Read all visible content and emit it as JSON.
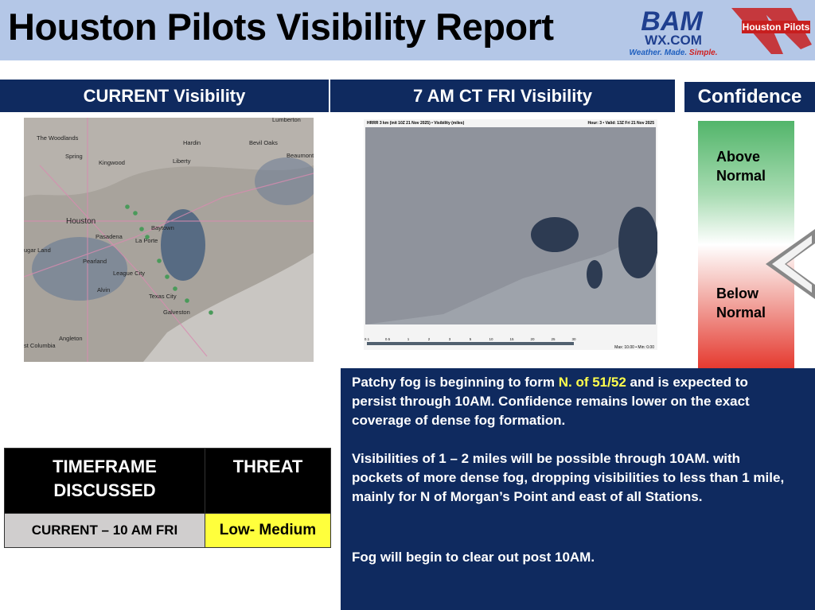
{
  "header": {
    "title": "Houston Pilots Visibility Report",
    "logo_bam": {
      "top": "BAM",
      "bottom": "WX.COM",
      "tagline_parts": [
        "Weather. ",
        "Made. ",
        "Simple."
      ]
    },
    "logo_pilots": "Houston Pilots"
  },
  "panels": {
    "current": {
      "title": "CURRENT Visibility",
      "map_labels": [
        "The Woodlands",
        "Spring",
        "Kingwood",
        "Hardin",
        "Bevil Oaks",
        "Beaumont",
        "Lumberton",
        "Liberty",
        "Houston",
        "Baytown",
        "Pasadena",
        "La Porte",
        "ugar Land",
        "Pearland",
        "League City",
        "Alvin",
        "Texas City",
        "Galveston",
        "Angleton",
        "st Columbia"
      ]
    },
    "forecast": {
      "title": "7 AM CT FRI Visibility",
      "map_header_left": "HRRR 3 km (init 10Z 21 Nov 2025) • Visibility (miles)",
      "map_header_right": "Hour: 3 • Valid: 13Z Fri 21 Nov 2025",
      "legend_ticks": [
        "0.1",
        "0.5",
        "1",
        "2",
        "3",
        "5",
        "10",
        "15",
        "20",
        "25",
        "30"
      ],
      "legend_max": "Max: 10.00 • Min: 0.00"
    }
  },
  "confidence": {
    "title": "Confidence",
    "above": "Above Normal",
    "below": "Below Normal"
  },
  "table": {
    "headers": [
      "TIMEFRAME DISCUSSED",
      "THREAT"
    ],
    "rows": [
      [
        "CURRENT – 10 AM FRI",
        "Low- Medium"
      ]
    ]
  },
  "notes": [
    [
      "Patchy fog is beginning to form ",
      "N. of 51/52",
      " and is expected to persist through 10AM. Confidence remains lower on the exact coverage of dense fog formation."
    ],
    [
      "Visibilities of 1 – 2 miles will be possible through 10AM. with pockets of more dense fog, dropping visibilities to less than 1 mile, mainly for N of Morgan’s Point and east of all Stations."
    ],
    [
      "Fog will begin to clear out post 10AM."
    ]
  ]
}
